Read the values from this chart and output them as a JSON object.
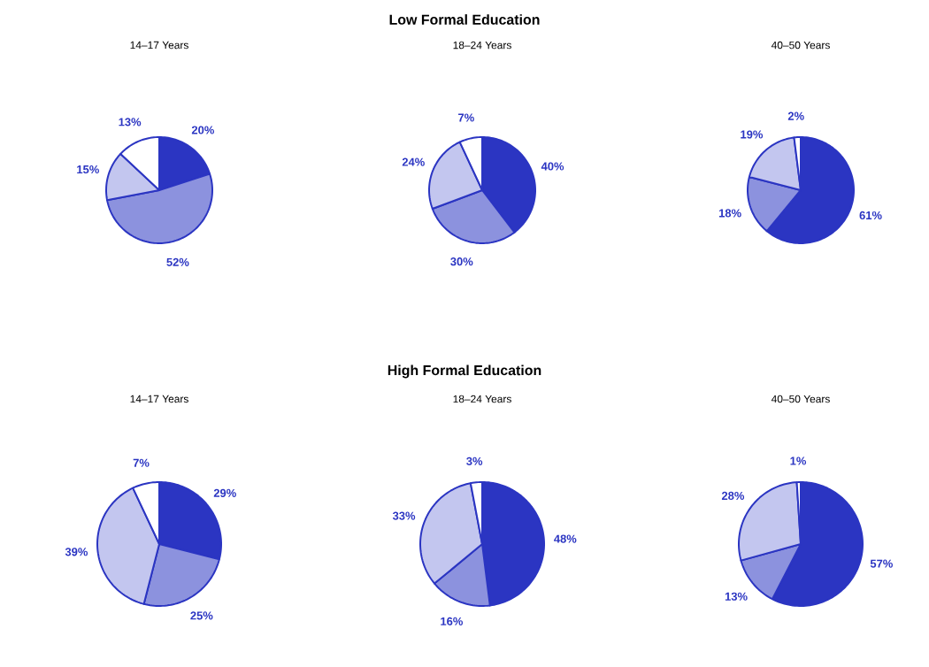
{
  "chart_data": [
    {
      "type": "pie",
      "title": "14–17 Years",
      "annotations": [
        "Low Formal Education"
      ],
      "categories": [
        null,
        null,
        null,
        null
      ],
      "values": [
        20,
        52,
        15,
        13
      ],
      "value_labels": [
        "20%",
        "52%",
        "15%",
        "13%"
      ],
      "colors": [
        "#2b35c2",
        "#8c92de",
        "#c3c6ef",
        "#ffffff"
      ]
    },
    {
      "type": "pie",
      "title": "18–24 Years",
      "categories": [
        null,
        null,
        null,
        null
      ],
      "values": [
        40,
        30,
        24,
        7
      ],
      "value_labels": [
        "40%",
        "30%",
        "24%",
        "7%"
      ],
      "colors": [
        "#2b35c2",
        "#8c92de",
        "#c3c6ef",
        "#ffffff"
      ]
    },
    {
      "type": "pie",
      "title": "40–50 Years",
      "categories": [
        null,
        null,
        null,
        null
      ],
      "values": [
        61,
        18,
        19,
        2
      ],
      "value_labels": [
        "61%",
        "18%",
        "19%",
        "2%"
      ],
      "colors": [
        "#2b35c2",
        "#8c92de",
        "#c3c6ef",
        "#ffffff"
      ]
    },
    {
      "type": "pie",
      "title": "14–17 Years",
      "annotations": [
        "High Formal Education"
      ],
      "categories": [
        null,
        null,
        null,
        null
      ],
      "values": [
        29,
        25,
        39,
        7
      ],
      "value_labels": [
        "29%",
        "25%",
        "39%",
        "7%"
      ],
      "colors": [
        "#2b35c2",
        "#8c92de",
        "#c3c6ef",
        "#ffffff"
      ]
    },
    {
      "type": "pie",
      "title": "18–24 Years",
      "categories": [
        null,
        null,
        null,
        null
      ],
      "values": [
        48,
        16,
        33,
        3
      ],
      "value_labels": [
        "48%",
        "16%",
        "33%",
        "3%"
      ],
      "colors": [
        "#2b35c2",
        "#8c92de",
        "#c3c6ef",
        "#ffffff"
      ]
    },
    {
      "type": "pie",
      "title": "40–50 Years",
      "categories": [
        null,
        null,
        null,
        null
      ],
      "values": [
        57,
        13,
        28,
        1
      ],
      "value_labels": [
        "57%",
        "13%",
        "28%",
        "1%"
      ],
      "colors": [
        "#2b35c2",
        "#8c92de",
        "#c3c6ef",
        "#ffffff"
      ]
    }
  ]
}
